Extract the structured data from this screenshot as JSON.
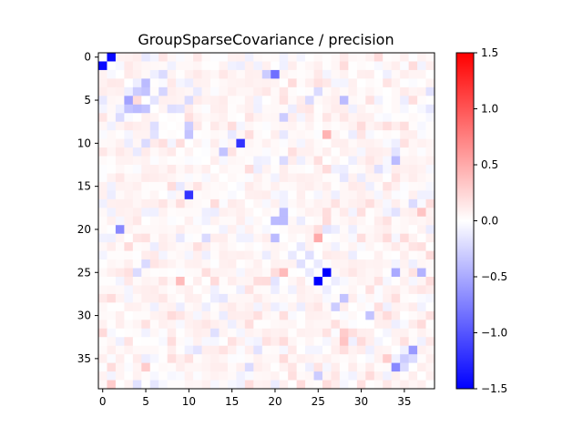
{
  "chart_data": {
    "type": "heatmap",
    "title": "GroupSparseCovariance / precision",
    "xlabel": "",
    "ylabel": "",
    "size": 39,
    "xlim": [
      -0.5,
      38.5
    ],
    "ylim": [
      38.5,
      -0.5
    ],
    "xticks": [
      0,
      5,
      10,
      15,
      20,
      25,
      30,
      35
    ],
    "yticks": [
      0,
      5,
      10,
      15,
      20,
      25,
      30,
      35
    ],
    "colormap": "bwr",
    "vmin": -1.5,
    "vmax": 1.5,
    "colorbar_ticks": [
      1.5,
      1.0,
      0.5,
      0.0,
      -0.5,
      -1.0,
      -1.5
    ],
    "colorbar_tick_labels": [
      "1.5",
      "1.0",
      "0.5",
      "0.0",
      "−0.5",
      "−1.0",
      "−1.5"
    ],
    "colors": {
      "low": "#0000ff",
      "mid": "#ffffff",
      "high": "#ff0000"
    },
    "grid": false,
    "notable_cells": [
      {
        "row": 0,
        "col": 1,
        "value": -1.45
      },
      {
        "row": 1,
        "col": 0,
        "value": -1.45
      },
      {
        "row": 2,
        "col": 20,
        "value": -0.85
      },
      {
        "row": 2,
        "col": 19,
        "value": -0.3
      },
      {
        "row": 3,
        "col": 5,
        "value": -0.4
      },
      {
        "row": 4,
        "col": 4,
        "value": -0.3
      },
      {
        "row": 4,
        "col": 5,
        "value": -0.35
      },
      {
        "row": 4,
        "col": 7,
        "value": -0.25
      },
      {
        "row": 5,
        "col": 3,
        "value": -0.55
      },
      {
        "row": 5,
        "col": 28,
        "value": -0.4
      },
      {
        "row": 6,
        "col": 3,
        "value": -0.35
      },
      {
        "row": 6,
        "col": 4,
        "value": -0.4
      },
      {
        "row": 6,
        "col": 5,
        "value": -0.35
      },
      {
        "row": 7,
        "col": 21,
        "value": -0.3
      },
      {
        "row": 8,
        "col": 10,
        "value": -0.3
      },
      {
        "row": 9,
        "col": 26,
        "value": 0.45
      },
      {
        "row": 9,
        "col": 10,
        "value": -0.35
      },
      {
        "row": 10,
        "col": 16,
        "value": -1.2
      },
      {
        "row": 11,
        "col": 14,
        "value": -0.35
      },
      {
        "row": 12,
        "col": 34,
        "value": -0.4
      },
      {
        "row": 16,
        "col": 10,
        "value": -1.2
      },
      {
        "row": 18,
        "col": 21,
        "value": -0.4
      },
      {
        "row": 18,
        "col": 37,
        "value": 0.35
      },
      {
        "row": 19,
        "col": 20,
        "value": -0.4
      },
      {
        "row": 19,
        "col": 21,
        "value": -0.4
      },
      {
        "row": 20,
        "col": 2,
        "value": -0.7
      },
      {
        "row": 21,
        "col": 20,
        "value": -0.4
      },
      {
        "row": 21,
        "col": 25,
        "value": 0.5
      },
      {
        "row": 25,
        "col": 26,
        "value": -1.5
      },
      {
        "row": 25,
        "col": 21,
        "value": 0.4
      },
      {
        "row": 25,
        "col": 34,
        "value": -0.5
      },
      {
        "row": 25,
        "col": 37,
        "value": -0.45
      },
      {
        "row": 26,
        "col": 25,
        "value": -1.5
      },
      {
        "row": 26,
        "col": 9,
        "value": 0.4
      },
      {
        "row": 28,
        "col": 28,
        "value": -0.35
      },
      {
        "row": 29,
        "col": 27,
        "value": -0.3
      },
      {
        "row": 30,
        "col": 31,
        "value": -0.35
      },
      {
        "row": 32,
        "col": 28,
        "value": 0.3
      },
      {
        "row": 33,
        "col": 28,
        "value": 0.35
      },
      {
        "row": 34,
        "col": 36,
        "value": -0.6
      },
      {
        "row": 35,
        "col": 33,
        "value": 0.3
      },
      {
        "row": 35,
        "col": 35,
        "value": -0.3
      },
      {
        "row": 36,
        "col": 34,
        "value": -0.7
      },
      {
        "row": 36,
        "col": 5,
        "value": 0.3
      },
      {
        "row": 37,
        "col": 25,
        "value": -0.3
      },
      {
        "row": 38,
        "col": 1,
        "value": 0.3
      }
    ],
    "background_noise_amplitude": 0.22
  }
}
